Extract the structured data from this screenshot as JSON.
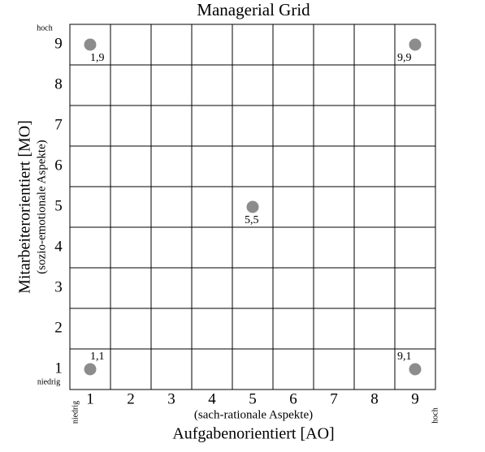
{
  "chart_data": {
    "type": "scatter",
    "title": "Managerial Grid",
    "x_label": "Aufgabenorientiert [AO]",
    "x_sublabel": "(sach-rationale Aspekte)",
    "y_label": "Mitarbeiterorientiert [MO]",
    "y_sublabel": "(sozio-emotionale Aspekte)",
    "x_low_label": "niedrig",
    "x_high_label": "hoch",
    "y_low_label": "niedrig",
    "y_high_label": "hoch",
    "xlim": [
      0.5,
      9.5
    ],
    "ylim": [
      0.5,
      9.5
    ],
    "xticks": [
      1,
      2,
      3,
      4,
      5,
      6,
      7,
      8,
      9
    ],
    "yticks": [
      1,
      2,
      3,
      4,
      5,
      6,
      7,
      8,
      9
    ],
    "grid": true,
    "series": [
      {
        "color": "#8c8c8c",
        "x": [
          1,
          9,
          5,
          1,
          9
        ],
        "values": [
          9,
          9,
          5,
          1,
          1
        ],
        "value_labels": [
          "1,9",
          "9,9",
          "5,5",
          "1,1",
          "9,1"
        ]
      }
    ]
  }
}
